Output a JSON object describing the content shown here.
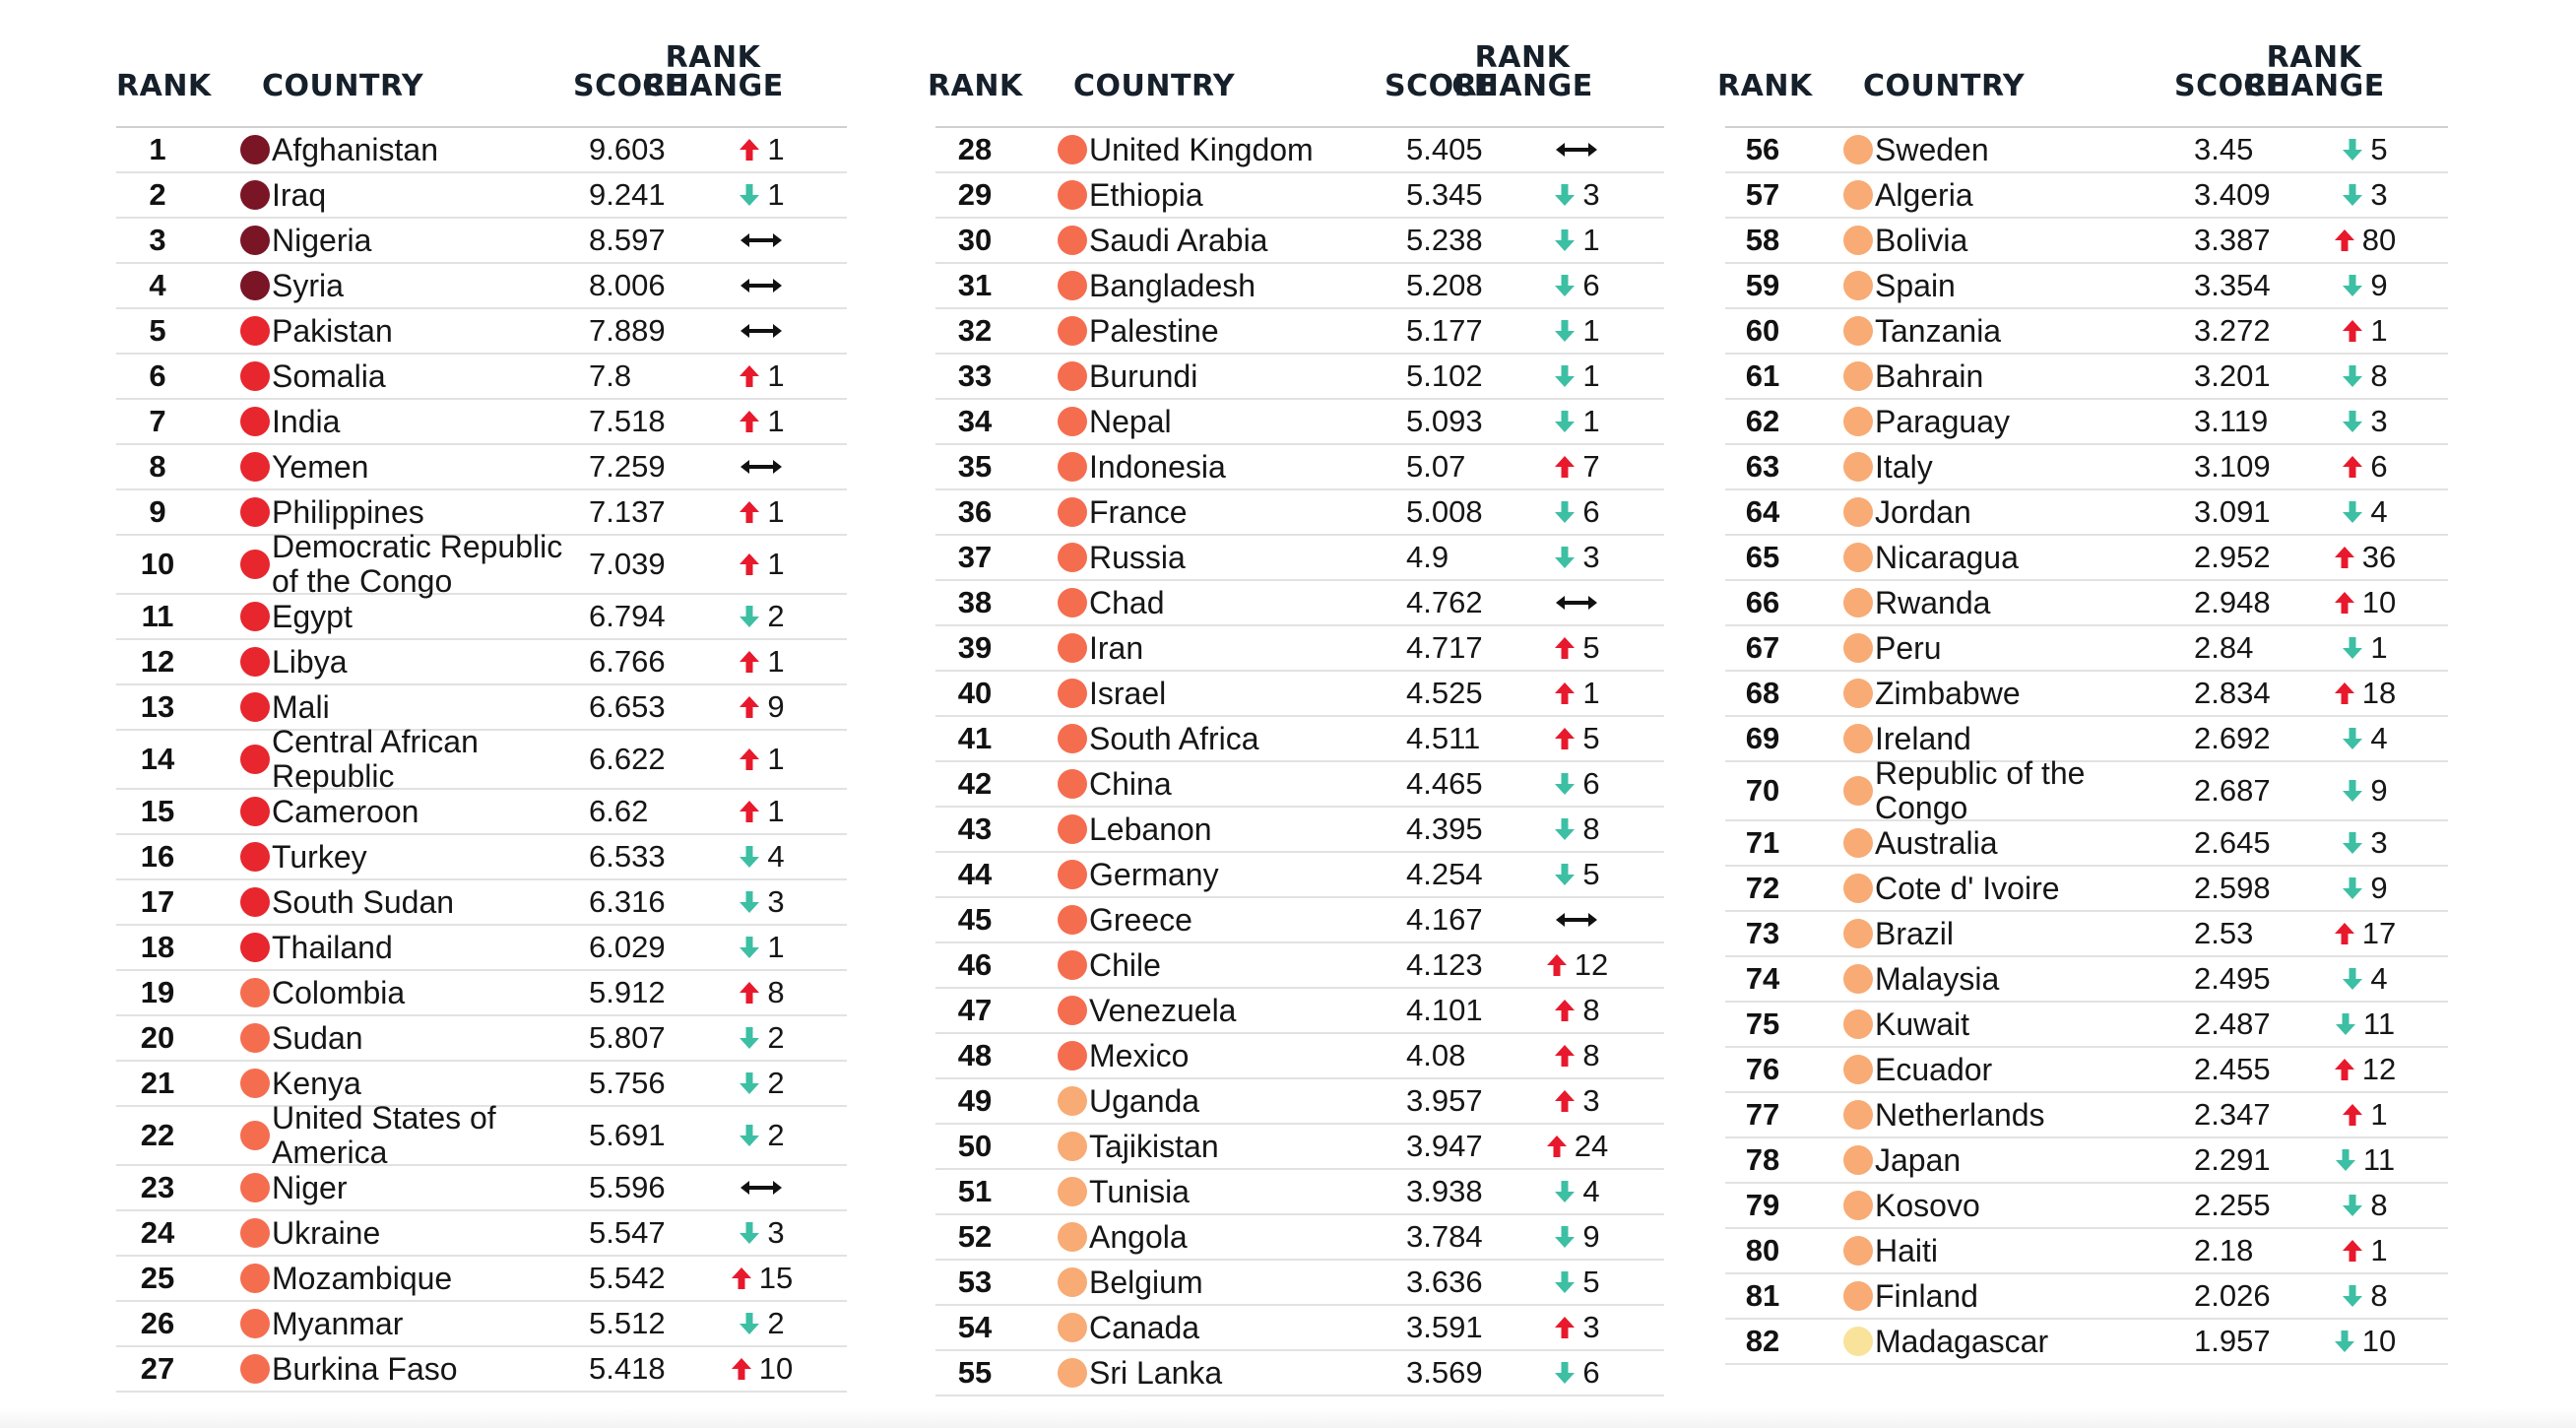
{
  "headers": {
    "rank": "RANK",
    "country": "COUNTRY",
    "score": "SCORE",
    "change_line1": "RANK",
    "change_line2": "CHANGE"
  },
  "colors": {
    "dark": "#7a1526",
    "red": "#e8262d",
    "coral": "#f56d4f",
    "orange": "#f8ab74",
    "yellow": "#f9e39a",
    "up": "#e8192c",
    "down": "#3dbfa4",
    "same": "#111111"
  },
  "icons": {
    "up": "arrow-up-icon",
    "down": "arrow-down-icon",
    "same": "double-arrow-icon"
  },
  "panels": [
    {
      "rows": [
        {
          "rank": "1",
          "country": "Afghanistan",
          "score": "9.603",
          "color": "dark",
          "dir": "up",
          "change": "1"
        },
        {
          "rank": "2",
          "country": "Iraq",
          "score": "9.241",
          "color": "dark",
          "dir": "down",
          "change": "1"
        },
        {
          "rank": "3",
          "country": "Nigeria",
          "score": "8.597",
          "color": "dark",
          "dir": "same",
          "change": ""
        },
        {
          "rank": "4",
          "country": "Syria",
          "score": "8.006",
          "color": "dark",
          "dir": "same",
          "change": ""
        },
        {
          "rank": "5",
          "country": "Pakistan",
          "score": "7.889",
          "color": "red",
          "dir": "same",
          "change": ""
        },
        {
          "rank": "6",
          "country": "Somalia",
          "score": "7.8",
          "color": "red",
          "dir": "up",
          "change": "1"
        },
        {
          "rank": "7",
          "country": "India",
          "score": "7.518",
          "color": "red",
          "dir": "up",
          "change": "1"
        },
        {
          "rank": "8",
          "country": "Yemen",
          "score": "7.259",
          "color": "red",
          "dir": "same",
          "change": ""
        },
        {
          "rank": "9",
          "country": "Philippines",
          "score": "7.137",
          "color": "red",
          "dir": "up",
          "change": "1"
        },
        {
          "rank": "10",
          "country": "Democratic Republic of the Congo",
          "score": "7.039",
          "color": "red",
          "dir": "up",
          "change": "1",
          "tall": true
        },
        {
          "rank": "11",
          "country": "Egypt",
          "score": "6.794",
          "color": "red",
          "dir": "down",
          "change": "2"
        },
        {
          "rank": "12",
          "country": "Libya",
          "score": "6.766",
          "color": "red",
          "dir": "up",
          "change": "1"
        },
        {
          "rank": "13",
          "country": "Mali",
          "score": "6.653",
          "color": "red",
          "dir": "up",
          "change": "9"
        },
        {
          "rank": "14",
          "country": "Central African Republic",
          "score": "6.622",
          "color": "red",
          "dir": "up",
          "change": "1",
          "tall": true
        },
        {
          "rank": "15",
          "country": "Cameroon",
          "score": "6.62",
          "color": "red",
          "dir": "up",
          "change": "1"
        },
        {
          "rank": "16",
          "country": "Turkey",
          "score": "6.533",
          "color": "red",
          "dir": "down",
          "change": "4"
        },
        {
          "rank": "17",
          "country": "South Sudan",
          "score": "6.316",
          "color": "red",
          "dir": "down",
          "change": "3"
        },
        {
          "rank": "18",
          "country": "Thailand",
          "score": "6.029",
          "color": "red",
          "dir": "down",
          "change": "1"
        },
        {
          "rank": "19",
          "country": "Colombia",
          "score": "5.912",
          "color": "coral",
          "dir": "up",
          "change": "8"
        },
        {
          "rank": "20",
          "country": "Sudan",
          "score": "5.807",
          "color": "coral",
          "dir": "down",
          "change": "2"
        },
        {
          "rank": "21",
          "country": "Kenya",
          "score": "5.756",
          "color": "coral",
          "dir": "down",
          "change": "2"
        },
        {
          "rank": "22",
          "country": "United States of America",
          "score": "5.691",
          "color": "coral",
          "dir": "down",
          "change": "2",
          "tall": true
        },
        {
          "rank": "23",
          "country": "Niger",
          "score": "5.596",
          "color": "coral",
          "dir": "same",
          "change": ""
        },
        {
          "rank": "24",
          "country": "Ukraine",
          "score": "5.547",
          "color": "coral",
          "dir": "down",
          "change": "3"
        },
        {
          "rank": "25",
          "country": "Mozambique",
          "score": "5.542",
          "color": "coral",
          "dir": "up",
          "change": "15"
        },
        {
          "rank": "26",
          "country": "Myanmar",
          "score": "5.512",
          "color": "coral",
          "dir": "down",
          "change": "2"
        },
        {
          "rank": "27",
          "country": "Burkina Faso",
          "score": "5.418",
          "color": "coral",
          "dir": "up",
          "change": "10"
        }
      ]
    },
    {
      "rows": [
        {
          "rank": "28",
          "country": "United Kingdom",
          "score": "5.405",
          "color": "coral",
          "dir": "same",
          "change": ""
        },
        {
          "rank": "29",
          "country": "Ethiopia",
          "score": "5.345",
          "color": "coral",
          "dir": "down",
          "change": "3"
        },
        {
          "rank": "30",
          "country": "Saudi Arabia",
          "score": "5.238",
          "color": "coral",
          "dir": "down",
          "change": "1"
        },
        {
          "rank": "31",
          "country": "Bangladesh",
          "score": "5.208",
          "color": "coral",
          "dir": "down",
          "change": "6"
        },
        {
          "rank": "32",
          "country": "Palestine",
          "score": "5.177",
          "color": "coral",
          "dir": "down",
          "change": "1"
        },
        {
          "rank": "33",
          "country": "Burundi",
          "score": "5.102",
          "color": "coral",
          "dir": "down",
          "change": "1"
        },
        {
          "rank": "34",
          "country": "Nepal",
          "score": "5.093",
          "color": "coral",
          "dir": "down",
          "change": "1"
        },
        {
          "rank": "35",
          "country": "Indonesia",
          "score": "5.07",
          "color": "coral",
          "dir": "up",
          "change": "7"
        },
        {
          "rank": "36",
          "country": "France",
          "score": "5.008",
          "color": "coral",
          "dir": "down",
          "change": "6"
        },
        {
          "rank": "37",
          "country": "Russia",
          "score": "4.9",
          "color": "coral",
          "dir": "down",
          "change": "3"
        },
        {
          "rank": "38",
          "country": "Chad",
          "score": "4.762",
          "color": "coral",
          "dir": "same",
          "change": ""
        },
        {
          "rank": "39",
          "country": "Iran",
          "score": "4.717",
          "color": "coral",
          "dir": "up",
          "change": "5"
        },
        {
          "rank": "40",
          "country": "Israel",
          "score": "4.525",
          "color": "coral",
          "dir": "up",
          "change": "1"
        },
        {
          "rank": "41",
          "country": "South Africa",
          "score": "4.511",
          "color": "coral",
          "dir": "up",
          "change": "5"
        },
        {
          "rank": "42",
          "country": "China",
          "score": "4.465",
          "color": "coral",
          "dir": "down",
          "change": "6"
        },
        {
          "rank": "43",
          "country": "Lebanon",
          "score": "4.395",
          "color": "coral",
          "dir": "down",
          "change": "8"
        },
        {
          "rank": "44",
          "country": "Germany",
          "score": "4.254",
          "color": "coral",
          "dir": "down",
          "change": "5"
        },
        {
          "rank": "45",
          "country": "Greece",
          "score": "4.167",
          "color": "coral",
          "dir": "same",
          "change": ""
        },
        {
          "rank": "46",
          "country": "Chile",
          "score": "4.123",
          "color": "coral",
          "dir": "up",
          "change": "12"
        },
        {
          "rank": "47",
          "country": "Venezuela",
          "score": "4.101",
          "color": "coral",
          "dir": "up",
          "change": "8"
        },
        {
          "rank": "48",
          "country": "Mexico",
          "score": "4.08",
          "color": "coral",
          "dir": "up",
          "change": "8"
        },
        {
          "rank": "49",
          "country": "Uganda",
          "score": "3.957",
          "color": "orange",
          "dir": "up",
          "change": "3"
        },
        {
          "rank": "50",
          "country": "Tajikistan",
          "score": "3.947",
          "color": "orange",
          "dir": "up",
          "change": "24"
        },
        {
          "rank": "51",
          "country": "Tunisia",
          "score": "3.938",
          "color": "orange",
          "dir": "down",
          "change": "4"
        },
        {
          "rank": "52",
          "country": "Angola",
          "score": "3.784",
          "color": "orange",
          "dir": "down",
          "change": "9"
        },
        {
          "rank": "53",
          "country": "Belgium",
          "score": "3.636",
          "color": "orange",
          "dir": "down",
          "change": "5"
        },
        {
          "rank": "54",
          "country": "Canada",
          "score": "3.591",
          "color": "orange",
          "dir": "up",
          "change": "3"
        },
        {
          "rank": "55",
          "country": "Sri Lanka",
          "score": "3.569",
          "color": "orange",
          "dir": "down",
          "change": "6"
        }
      ]
    },
    {
      "rows": [
        {
          "rank": "56",
          "country": "Sweden",
          "score": "3.45",
          "color": "orange",
          "dir": "down",
          "change": "5"
        },
        {
          "rank": "57",
          "country": "Algeria",
          "score": "3.409",
          "color": "orange",
          "dir": "down",
          "change": "3"
        },
        {
          "rank": "58",
          "country": "Bolivia",
          "score": "3.387",
          "color": "orange",
          "dir": "up",
          "change": "80"
        },
        {
          "rank": "59",
          "country": "Spain",
          "score": "3.354",
          "color": "orange",
          "dir": "down",
          "change": "9"
        },
        {
          "rank": "60",
          "country": "Tanzania",
          "score": "3.272",
          "color": "orange",
          "dir": "up",
          "change": "1"
        },
        {
          "rank": "61",
          "country": "Bahrain",
          "score": "3.201",
          "color": "orange",
          "dir": "down",
          "change": "8"
        },
        {
          "rank": "62",
          "country": "Paraguay",
          "score": "3.119",
          "color": "orange",
          "dir": "down",
          "change": "3"
        },
        {
          "rank": "63",
          "country": "Italy",
          "score": "3.109",
          "color": "orange",
          "dir": "up",
          "change": "6"
        },
        {
          "rank": "64",
          "country": "Jordan",
          "score": "3.091",
          "color": "orange",
          "dir": "down",
          "change": "4"
        },
        {
          "rank": "65",
          "country": "Nicaragua",
          "score": "2.952",
          "color": "orange",
          "dir": "up",
          "change": "36"
        },
        {
          "rank": "66",
          "country": "Rwanda",
          "score": "2.948",
          "color": "orange",
          "dir": "up",
          "change": "10"
        },
        {
          "rank": "67",
          "country": "Peru",
          "score": "2.84",
          "color": "orange",
          "dir": "down",
          "change": "1"
        },
        {
          "rank": "68",
          "country": "Zimbabwe",
          "score": "2.834",
          "color": "orange",
          "dir": "up",
          "change": "18"
        },
        {
          "rank": "69",
          "country": "Ireland",
          "score": "2.692",
          "color": "orange",
          "dir": "down",
          "change": "4"
        },
        {
          "rank": "70",
          "country": "Republic of the Congo",
          "score": "2.687",
          "color": "orange",
          "dir": "down",
          "change": "9",
          "tall": true
        },
        {
          "rank": "71",
          "country": "Australia",
          "score": "2.645",
          "color": "orange",
          "dir": "down",
          "change": "3"
        },
        {
          "rank": "72",
          "country": "Cote d' Ivoire",
          "score": "2.598",
          "color": "orange",
          "dir": "down",
          "change": "9"
        },
        {
          "rank": "73",
          "country": "Brazil",
          "score": "2.53",
          "color": "orange",
          "dir": "up",
          "change": "17"
        },
        {
          "rank": "74",
          "country": "Malaysia",
          "score": "2.495",
          "color": "orange",
          "dir": "down",
          "change": "4"
        },
        {
          "rank": "75",
          "country": "Kuwait",
          "score": "2.487",
          "color": "orange",
          "dir": "down",
          "change": "11"
        },
        {
          "rank": "76",
          "country": "Ecuador",
          "score": "2.455",
          "color": "orange",
          "dir": "up",
          "change": "12"
        },
        {
          "rank": "77",
          "country": "Netherlands",
          "score": "2.347",
          "color": "orange",
          "dir": "up",
          "change": "1"
        },
        {
          "rank": "78",
          "country": "Japan",
          "score": "2.291",
          "color": "orange",
          "dir": "down",
          "change": "11"
        },
        {
          "rank": "79",
          "country": "Kosovo",
          "score": "2.255",
          "color": "orange",
          "dir": "down",
          "change": "8"
        },
        {
          "rank": "80",
          "country": "Haiti",
          "score": "2.18",
          "color": "orange",
          "dir": "up",
          "change": "1"
        },
        {
          "rank": "81",
          "country": "Finland",
          "score": "2.026",
          "color": "orange",
          "dir": "down",
          "change": "8"
        },
        {
          "rank": "82",
          "country": "Madagascar",
          "score": "1.957",
          "color": "yellow",
          "dir": "down",
          "change": "10"
        }
      ]
    }
  ]
}
